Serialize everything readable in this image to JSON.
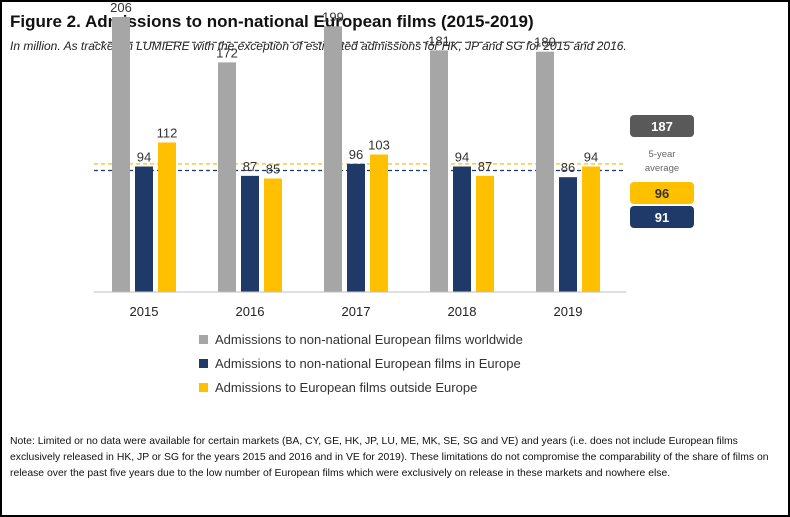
{
  "title": "Figure 2.   Admissions to non-national European films (2015-2019)",
  "subtitle": "In million. As tracked in LUMIERE with the exception of estimated admissions for HK, JP and SG for 2015 and 2016.",
  "note": "Note: Limited or no data were available for certain markets (BA, CY, GE, HK, JP, LU, ME, MK, SE, SG and VE) and years (i.e. does not include European films exclusively released in HK, JP or SG for the years 2015 and 2016 and in VE for 2019). These limitations do not compromise the comparability of the share of films on release over the past five years due to the low number of European films which were exclusively on release in these markets and nowhere else.",
  "colors": {
    "worldwide": "#a6a6a6",
    "europe": "#1f3a68",
    "outside": "#ffc000"
  },
  "chart_data": {
    "type": "bar",
    "title": "Admissions to non-national European films (2015-2019)",
    "ylabel": "In million",
    "xlabel": "",
    "ylim": [
      0,
      206
    ],
    "grid": false,
    "legend_position": "bottom",
    "categories": [
      "2015",
      "2016",
      "2017",
      "2018",
      "2019"
    ],
    "series": [
      {
        "key": "worldwide",
        "name": "Admissions to non-national European films worldwide",
        "values": [
          206,
          172,
          199,
          181,
          180
        ]
      },
      {
        "key": "europe",
        "name": "Admissions to non-national European films in Europe",
        "values": [
          94,
          87,
          96,
          94,
          86
        ]
      },
      {
        "key": "outside",
        "name": "Admissions to European films outside Europe",
        "values": [
          112,
          85,
          103,
          87,
          94
        ]
      }
    ],
    "averages": {
      "label": "5-year average",
      "worldwide": 187,
      "outside": 96,
      "europe": 91
    }
  }
}
